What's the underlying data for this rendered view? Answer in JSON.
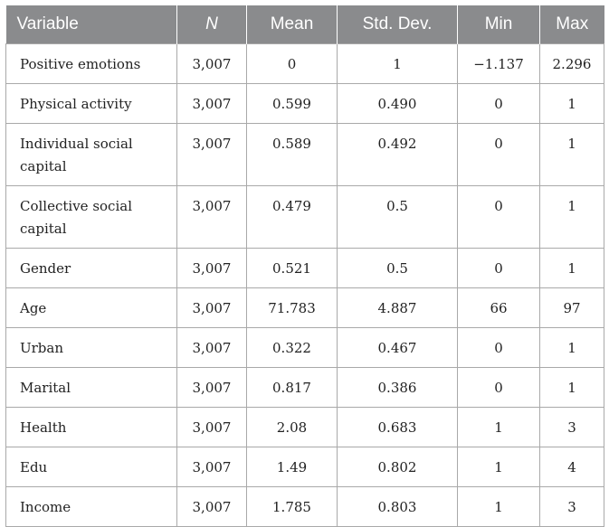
{
  "table": {
    "headers": [
      "Variable",
      "N",
      "Mean",
      "Std. Dev.",
      "Min",
      "Max"
    ],
    "rows": [
      {
        "variable": "Positive emotions",
        "n": "3,007",
        "mean": "0",
        "sd": "1",
        "min": "−1.137",
        "max": "2.296"
      },
      {
        "variable": "Physical activity",
        "n": "3,007",
        "mean": "0.599",
        "sd": "0.490",
        "min": "0",
        "max": "1"
      },
      {
        "variable": "Individual social capital",
        "n": "3,007",
        "mean": "0.589",
        "sd": "0.492",
        "min": "0",
        "max": "1"
      },
      {
        "variable": "Collective social capital",
        "n": "3,007",
        "mean": "0.479",
        "sd": "0.5",
        "min": "0",
        "max": "1"
      },
      {
        "variable": "Gender",
        "n": "3,007",
        "mean": "0.521",
        "sd": "0.5",
        "min": "0",
        "max": "1"
      },
      {
        "variable": "Age",
        "n": "3,007",
        "mean": "71.783",
        "sd": "4.887",
        "min": "66",
        "max": "97"
      },
      {
        "variable": "Urban",
        "n": "3,007",
        "mean": "0.322",
        "sd": "0.467",
        "min": "0",
        "max": "1"
      },
      {
        "variable": "Marital",
        "n": "3,007",
        "mean": "0.817",
        "sd": "0.386",
        "min": "0",
        "max": "1"
      },
      {
        "variable": "Health",
        "n": "3,007",
        "mean": "2.08",
        "sd": "0.683",
        "min": "1",
        "max": "3"
      },
      {
        "variable": "Edu",
        "n": "3,007",
        "mean": "1.49",
        "sd": "0.802",
        "min": "1",
        "max": "4"
      },
      {
        "variable": "Income",
        "n": "3,007",
        "mean": "1.785",
        "sd": "0.803",
        "min": "1",
        "max": "3"
      }
    ]
  },
  "colors": {
    "header_bg": "#8a8b8d",
    "header_text": "#ffffff",
    "border": "#a9a9a9",
    "body_text": "#222222"
  }
}
